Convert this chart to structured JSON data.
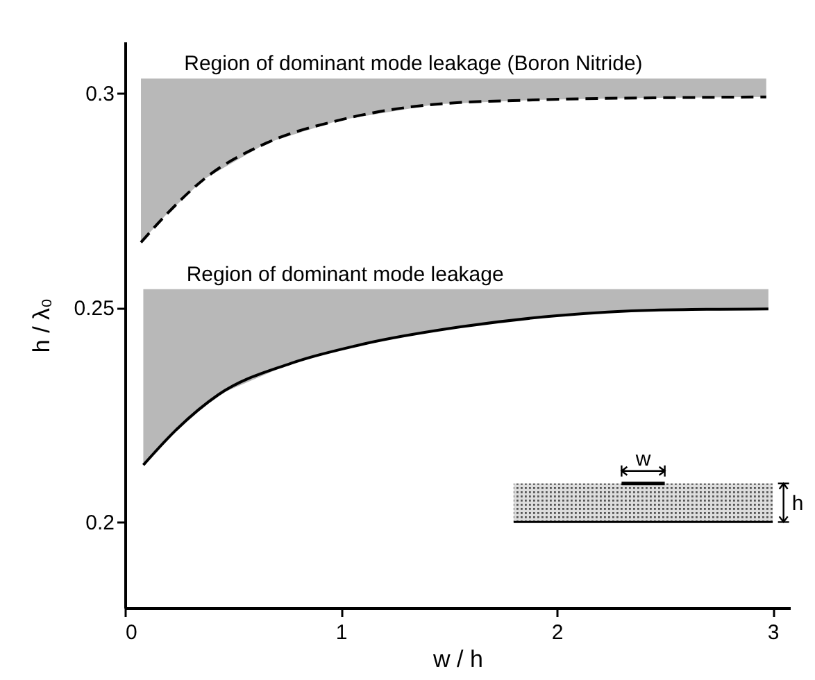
{
  "chart_data": {
    "type": "line",
    "xlabel": "w / h",
    "ylabel": "h / λ₀",
    "xlim": [
      0,
      3.08
    ],
    "ylim": [
      0.18,
      0.312
    ],
    "xticks": [
      0,
      1,
      2,
      3
    ],
    "yticks": [
      0.2,
      0.25,
      0.3
    ],
    "grid": false,
    "marker": "none",
    "series": [
      {
        "color": "#000000",
        "line_style": "dashed",
        "x": [
          0.074,
          0.186,
          0.365,
          0.657,
          0.993,
          1.44,
          1.89,
          2.45,
          2.97
        ],
        "values": [
          0.2652,
          0.2714,
          0.2799,
          0.2884,
          0.2937,
          0.2974,
          0.2984,
          0.2989,
          0.2991
        ],
        "lower": [
          0.2652,
          0.2714,
          0.2799,
          0.2884,
          0.2937,
          0.2974,
          0.2984,
          0.2989,
          0.2991
        ],
        "upper": [
          0.3034,
          0.3034,
          0.3034,
          0.3034,
          0.3034,
          0.3034,
          0.3034,
          0.3034,
          0.3034
        ]
      },
      {
        "color": "#000000",
        "line_style": "solid",
        "x": [
          0.085,
          0.231,
          0.433,
          0.769,
          1.105,
          1.554,
          2.0,
          2.45,
          2.98
        ],
        "values": [
          0.2133,
          0.2212,
          0.2297,
          0.237,
          0.2415,
          0.2455,
          0.2481,
          0.2494,
          0.2497
        ],
        "lower": [
          0.2133,
          0.2212,
          0.2297,
          0.237,
          0.2415,
          0.2455,
          0.2481,
          0.2494,
          0.2497
        ],
        "upper": [
          0.2543,
          0.2543,
          0.2543,
          0.2543,
          0.2543,
          0.2543,
          0.2543,
          0.2543,
          0.2543
        ]
      }
    ],
    "annotations": [
      "Region of dominant mode leakage (Boron Nitride)",
      "Region of dominant mode leakage",
      "w",
      "h"
    ]
  }
}
